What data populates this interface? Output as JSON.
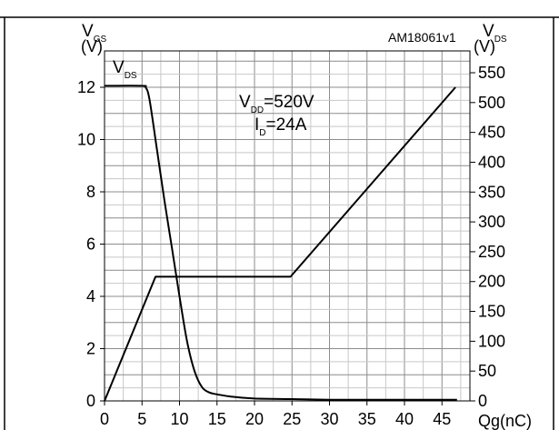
{
  "chart_data": {
    "type": "line",
    "figure_id": "AM18061v1",
    "x_axis": {
      "label": "Qg(nC)",
      "range": [
        0,
        50
      ],
      "ticks": [
        0,
        5,
        10,
        15,
        20,
        25,
        30,
        35,
        40,
        45
      ]
    },
    "y_left": {
      "label_main": "V",
      "label_sub": "GS",
      "unit": "(V)",
      "range": [
        0,
        13
      ],
      "ticks": [
        0,
        2,
        4,
        6,
        8,
        10,
        12
      ]
    },
    "y_right": {
      "label_main": "V",
      "label_sub": "DS",
      "unit": "(V)",
      "range": [
        0,
        565
      ],
      "ticks": [
        0,
        50,
        100,
        150,
        200,
        250,
        300,
        350,
        400,
        450,
        500,
        550
      ]
    },
    "grid": true,
    "annotations": {
      "curve_label": {
        "main": "V",
        "sub": "DS"
      },
      "condition_1": {
        "main": "V",
        "sub": "DD",
        "rest": "=520V"
      },
      "condition_2": {
        "main": "I",
        "sub": "D",
        "rest": "=24A"
      }
    },
    "series": [
      {
        "axis": "right",
        "x": [
          0,
          5.0,
          5.5,
          6.0,
          7.0,
          8.0,
          9.0,
          10.0,
          11.0,
          12.0,
          13.0,
          14.0,
          15.0,
          17.0,
          20.0,
          25.0,
          30.0,
          40.0,
          47.0
        ],
        "y": [
          528,
          528,
          525,
          505,
          420,
          335,
          255,
          175,
          100,
          50,
          23,
          14,
          11,
          7,
          4,
          3,
          2,
          2,
          2
        ]
      },
      {
        "axis": "left",
        "x": [
          0,
          6.8,
          24.8,
          46.8
        ],
        "y": [
          0,
          4.75,
          4.75,
          12
        ]
      }
    ]
  }
}
